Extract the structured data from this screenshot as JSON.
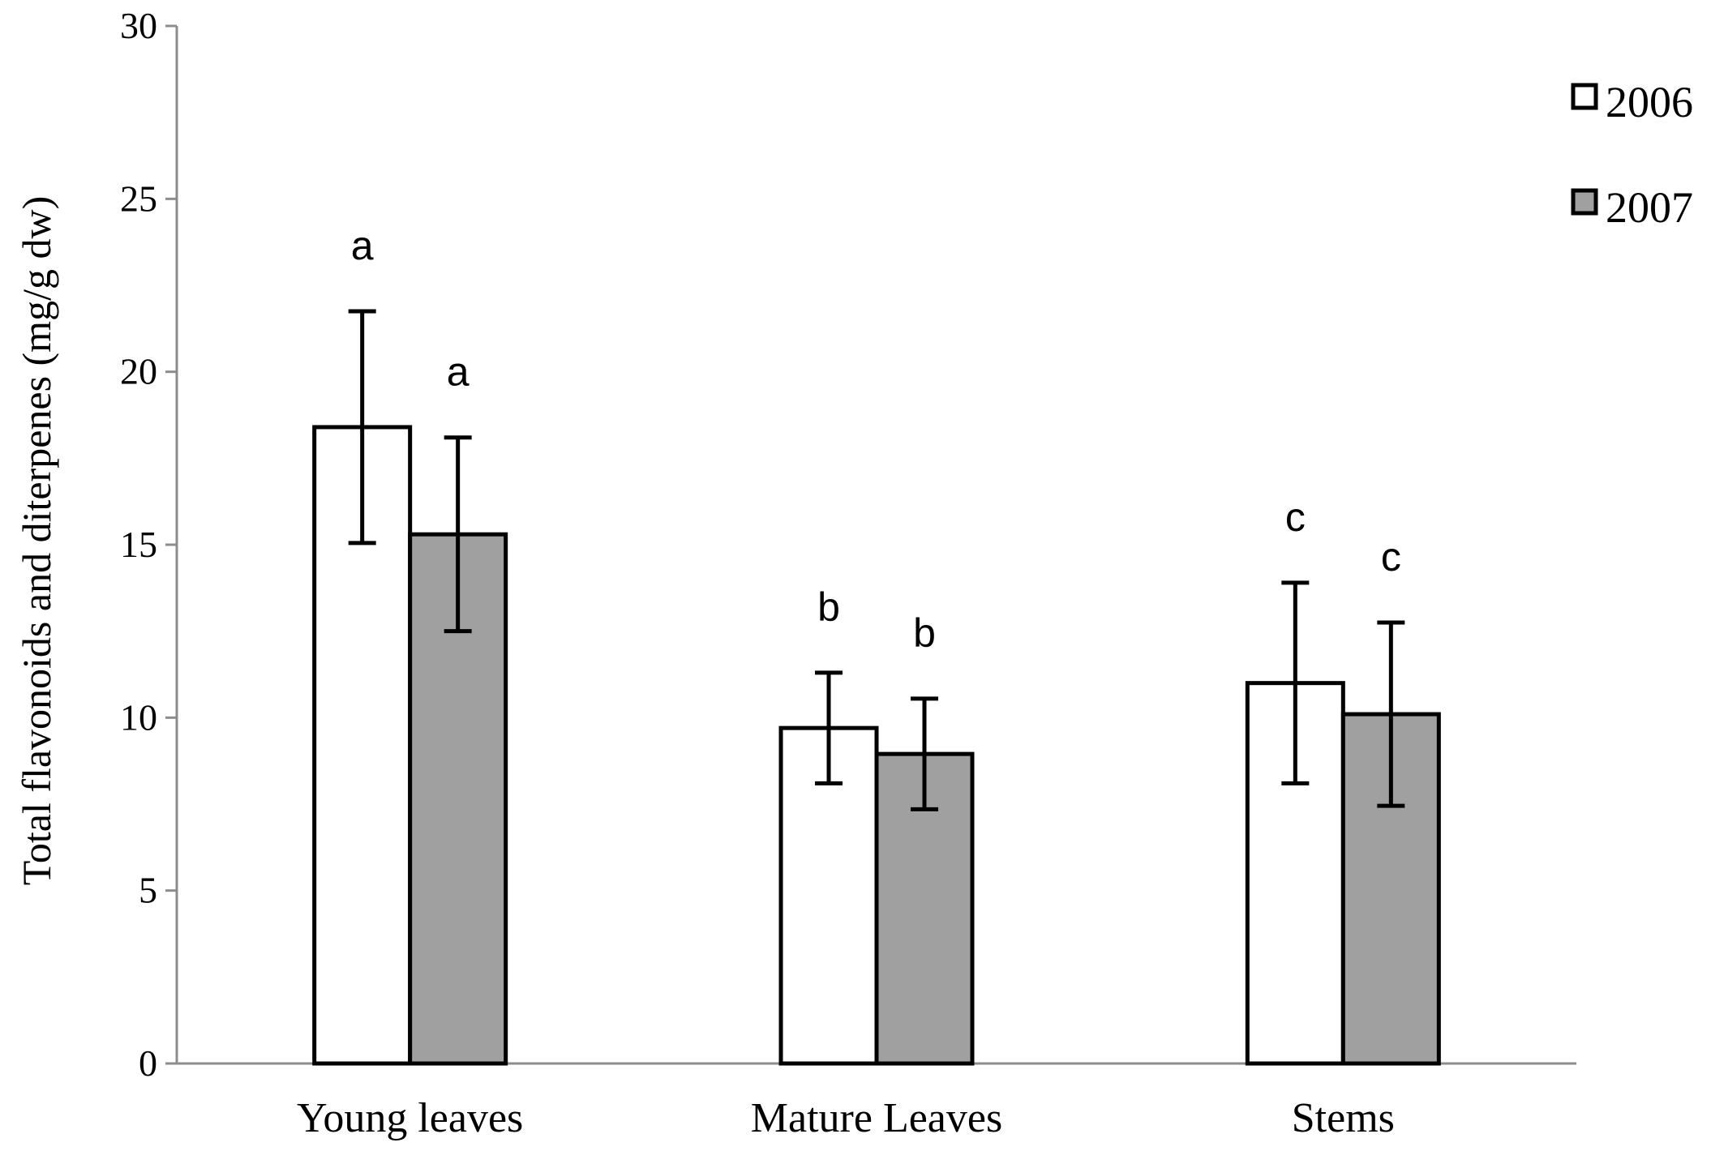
{
  "chart_data": {
    "type": "bar",
    "title": "",
    "xlabel": "",
    "ylabel": "Total flavonoids and diterpenes  (mg/g dw)",
    "ylim": [
      0,
      30
    ],
    "yticks": [
      0,
      5,
      10,
      15,
      20,
      25,
      30
    ],
    "ytick_labels": [
      "0",
      "5",
      "10",
      "15",
      "20",
      "25",
      "30"
    ],
    "grid": false,
    "legend_position": "top-right",
    "categories": [
      "Young leaves",
      "Mature Leaves",
      "Stems"
    ],
    "series": [
      {
        "name": "2006",
        "color": "#ffffff",
        "values": [
          18.4,
          9.7,
          11.0
        ],
        "error": [
          3.35,
          1.6,
          2.9
        ],
        "letters": [
          "a",
          "b",
          "c"
        ]
      },
      {
        "name": "2007",
        "color": "#a0a0a0",
        "values": [
          15.3,
          8.95,
          10.1
        ],
        "error": [
          2.8,
          1.6,
          2.65
        ],
        "letters": [
          "a",
          "b",
          "c"
        ]
      }
    ]
  }
}
